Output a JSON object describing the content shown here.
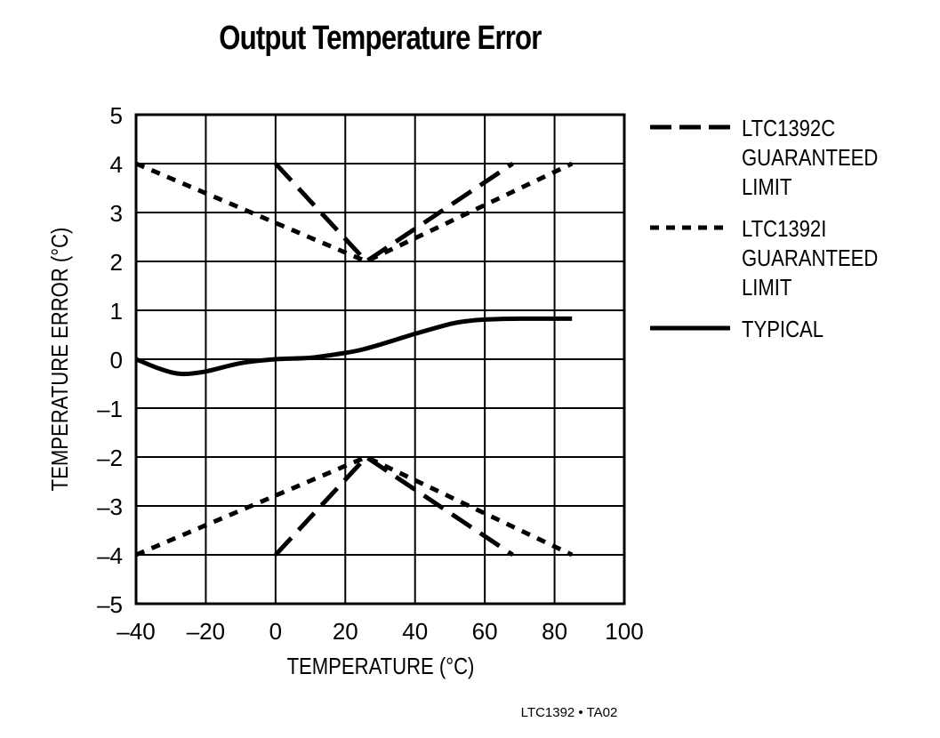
{
  "chart_data": {
    "type": "line",
    "title": "Output Temperature Error",
    "xlabel": "TEMPERATURE (°C)",
    "ylabel": "TEMPERATURE ERROR (°C)",
    "xlim": [
      -40,
      100
    ],
    "ylim": [
      -5,
      5
    ],
    "xticks": [
      -40,
      -20,
      0,
      20,
      40,
      60,
      80,
      100
    ],
    "xtick_labels": [
      "–40",
      "–20",
      "0",
      "20",
      "40",
      "60",
      "80",
      "100"
    ],
    "yticks": [
      5,
      4,
      3,
      2,
      1,
      0,
      -1,
      -2,
      -3,
      -4,
      -5
    ],
    "ytick_labels": [
      "5",
      "4",
      "3",
      "2",
      "1",
      "0",
      "–1",
      "–2",
      "–3",
      "–4",
      "–5"
    ],
    "grid": true,
    "legend_position": "right",
    "series": [
      {
        "name": "LTC1392C GUARANTEED LIMIT",
        "style": "dashed",
        "upper": {
          "x": [
            0,
            26,
            68
          ],
          "y": [
            4,
            2,
            4
          ]
        },
        "lower": {
          "x": [
            0,
            26,
            68
          ],
          "y": [
            -4,
            -2,
            -4
          ]
        }
      },
      {
        "name": "LTC1392I GUARANTEED LIMIT",
        "style": "dotted",
        "upper": {
          "x": [
            -40,
            26,
            85
          ],
          "y": [
            4,
            2,
            4
          ]
        },
        "lower": {
          "x": [
            -40,
            26,
            85
          ],
          "y": [
            -4,
            -2,
            -4
          ]
        }
      },
      {
        "name": "TYPICAL",
        "style": "solid",
        "x": [
          -40,
          -33,
          -27,
          -20,
          -10,
          0,
          10,
          20,
          25,
          30,
          40,
          50,
          55,
          60,
          70,
          85
        ],
        "y": [
          0,
          -0.2,
          -0.3,
          -0.25,
          -0.08,
          0,
          0.03,
          0.13,
          0.2,
          0.3,
          0.52,
          0.72,
          0.78,
          0.81,
          0.83,
          0.83
        ]
      }
    ]
  },
  "legend": [
    {
      "lines": [
        "LTC1392C",
        "GUARANTEED",
        "LIMIT"
      ],
      "style": "dashed"
    },
    {
      "lines": [
        "LTC1392I",
        "GUARANTEED",
        "LIMIT"
      ],
      "style": "dotted"
    },
    {
      "lines": [
        "TYPICAL"
      ],
      "style": "solid"
    }
  ],
  "footnote": "LTC1392 • TA02",
  "colors": {
    "line": "#000000",
    "grid": "#000000",
    "background": "#ffffff"
  }
}
